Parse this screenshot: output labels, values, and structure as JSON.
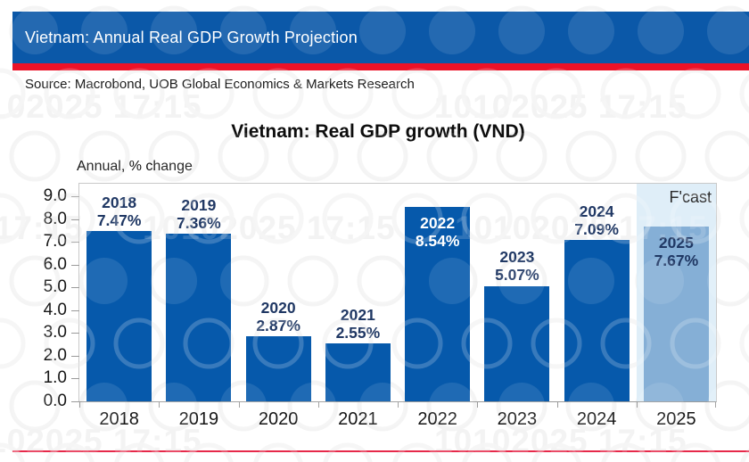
{
  "page": {
    "header_title": "Vietnam: Annual Real GDP Growth Projection",
    "source_line": "Source: Macrobond, UOB Global Economics & Markets Research",
    "watermark_text": "10102025 17:15"
  },
  "colors": {
    "header_blue": "#0B58A8",
    "header_red": "#EC1228",
    "bar_blue": "#0659AB",
    "forecast_bar_blue": "#85AFD6",
    "forecast_band": "#DFEEF8",
    "label_navy": "#203864",
    "bottom_line_red": "#E6294A"
  },
  "chart_data": {
    "type": "bar",
    "title": "Vietnam: Real GDP growth (VND)",
    "axis_note": "Annual, % change",
    "categories": [
      "2018",
      "2019",
      "2020",
      "2021",
      "2022",
      "2023",
      "2024",
      "2025"
    ],
    "values": [
      7.47,
      7.36,
      2.87,
      2.55,
      8.54,
      5.07,
      7.09,
      7.67
    ],
    "value_labels": [
      "7.47%",
      "7.36%",
      "2.87%",
      "2.55%",
      "8.54%",
      "5.07%",
      "7.09%",
      "7.67%"
    ],
    "label_style": [
      "above",
      "above",
      "above",
      "above",
      "inside-white",
      "above",
      "above",
      "inside-navy"
    ],
    "y_ticks": [
      "9.0",
      "8.0",
      "7.0",
      "6.0",
      "5.0",
      "4.0",
      "3.0",
      "2.0",
      "1.0",
      "0.0"
    ],
    "ylim": [
      0,
      9.55
    ],
    "grid": false,
    "legend": "none",
    "forecast": {
      "index": 7,
      "label": "F'cast"
    }
  }
}
